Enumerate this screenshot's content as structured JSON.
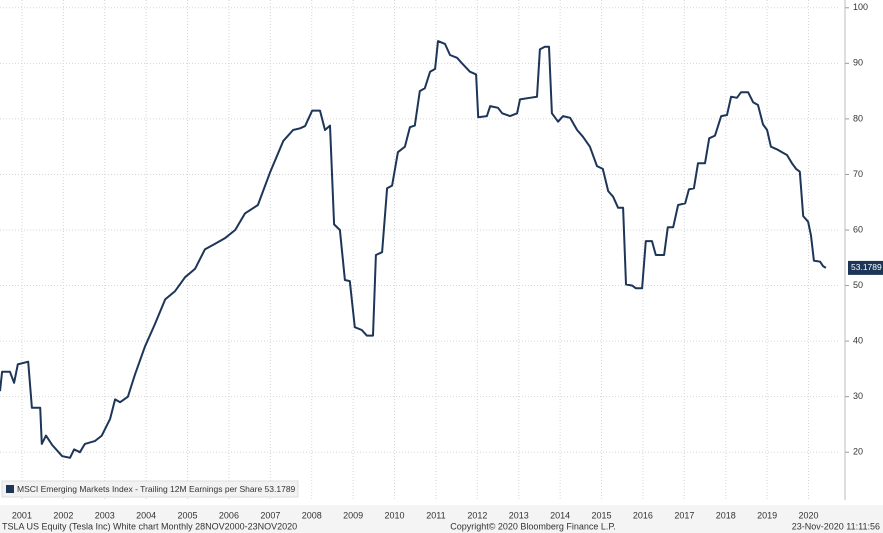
{
  "chart_data": {
    "type": "line",
    "legend_position": "bottom-left",
    "grid": true,
    "xlim": [
      2000.97,
      2021.26
    ],
    "ylim": [
      11.4,
      101.4
    ],
    "xticks": [
      {
        "value": 2001.5,
        "label": "2001"
      },
      {
        "value": 2002.5,
        "label": "2002"
      },
      {
        "value": 2003.5,
        "label": "2003"
      },
      {
        "value": 2004.5,
        "label": "2004"
      },
      {
        "value": 2005.5,
        "label": "2005"
      },
      {
        "value": 2006.5,
        "label": "2006"
      },
      {
        "value": 2007.5,
        "label": "2007"
      },
      {
        "value": 2008.5,
        "label": "2008"
      },
      {
        "value": 2009.5,
        "label": "2009"
      },
      {
        "value": 2010.5,
        "label": "2010"
      },
      {
        "value": 2011.5,
        "label": "2011"
      },
      {
        "value": 2012.5,
        "label": "2012"
      },
      {
        "value": 2013.5,
        "label": "2013"
      },
      {
        "value": 2014.5,
        "label": "2014"
      },
      {
        "value": 2015.5,
        "label": "2015"
      },
      {
        "value": 2016.5,
        "label": "2016"
      },
      {
        "value": 2017.5,
        "label": "2017"
      },
      {
        "value": 2018.5,
        "label": "2018"
      },
      {
        "value": 2019.5,
        "label": "2019"
      },
      {
        "value": 2020.5,
        "label": "2020"
      }
    ],
    "yticks": [
      20,
      30,
      40,
      50,
      60,
      70,
      80,
      90,
      100
    ],
    "x": [
      2000.97,
      2001.02,
      2001.21,
      2001.31,
      2001.4,
      2001.65,
      2001.74,
      2001.94,
      2001.98,
      2002.08,
      2002.23,
      2002.47,
      2002.66,
      2002.76,
      2002.9,
      2003.02,
      2003.26,
      2003.43,
      2003.63,
      2003.75,
      2003.87,
      2004.06,
      2004.23,
      2004.47,
      2004.71,
      2004.96,
      2005.2,
      2005.44,
      2005.68,
      2005.92,
      2006.16,
      2006.4,
      2006.65,
      2006.89,
      2007.2,
      2007.49,
      2007.81,
      2008.05,
      2008.22,
      2008.34,
      2008.51,
      2008.7,
      2008.82,
      2008.94,
      2009.04,
      2009.18,
      2009.3,
      2009.42,
      2009.54,
      2009.71,
      2009.83,
      2009.98,
      2010.05,
      2010.2,
      2010.32,
      2010.44,
      2010.58,
      2010.75,
      2010.87,
      2010.99,
      2011.11,
      2011.23,
      2011.36,
      2011.48,
      2011.55,
      2011.72,
      2011.84,
      2012.01,
      2012.13,
      2012.32,
      2012.47,
      2012.52,
      2012.73,
      2012.81,
      2013.0,
      2013.1,
      2013.29,
      2013.46,
      2013.53,
      2013.77,
      2013.94,
      2014.01,
      2014.13,
      2014.23,
      2014.3,
      2014.45,
      2014.57,
      2014.74,
      2014.91,
      2015.05,
      2015.22,
      2015.39,
      2015.53,
      2015.66,
      2015.78,
      2015.9,
      2016.02,
      2016.09,
      2016.24,
      2016.33,
      2016.48,
      2016.57,
      2016.72,
      2016.81,
      2017.01,
      2017.1,
      2017.23,
      2017.35,
      2017.52,
      2017.61,
      2017.73,
      2017.83,
      2018.0,
      2018.1,
      2018.24,
      2018.39,
      2018.53,
      2018.63,
      2018.77,
      2018.87,
      2019.04,
      2019.16,
      2019.28,
      2019.4,
      2019.5,
      2019.59,
      2019.74,
      2019.86,
      2019.98,
      2020.1,
      2020.2,
      2020.29,
      2020.37,
      2020.49,
      2020.56,
      2020.63,
      2020.78,
      2020.85,
      2020.92
    ],
    "series": [
      {
        "name": "MSCI Emerging Markets Index - Trailing 12M Earnings per Share 53.1789",
        "color": "#1d3557",
        "values": [
          31,
          34.5,
          34.5,
          32.5,
          35.8,
          36.3,
          28,
          28,
          21.5,
          23,
          21.3,
          19.3,
          19,
          20.5,
          20,
          21.5,
          22,
          23,
          26,
          29.5,
          29,
          30,
          34,
          39,
          43,
          47.5,
          49,
          51.5,
          53,
          56.5,
          57.5,
          58.5,
          60,
          63,
          64.5,
          70.3,
          76,
          78,
          78.3,
          78.7,
          81.5,
          81.5,
          78,
          78.8,
          61,
          60,
          51,
          50.8,
          42.5,
          42,
          41,
          41,
          55.5,
          56,
          67.5,
          68,
          74,
          75,
          78.5,
          78.8,
          85,
          85.5,
          88.5,
          89,
          94,
          93.5,
          91.5,
          91,
          90,
          88.5,
          88,
          80.3,
          80.5,
          82.3,
          82,
          81,
          80.5,
          81,
          83.5,
          83.8,
          84,
          92.5,
          93,
          93,
          81,
          79.5,
          80.5,
          80.2,
          78,
          76.8,
          75,
          71.5,
          71,
          67,
          66,
          64,
          64,
          50.2,
          50,
          49.5,
          49.5,
          58,
          58,
          55.5,
          55.5,
          60.5,
          60.5,
          64.5,
          64.8,
          67.3,
          67.5,
          72,
          72,
          76.5,
          77,
          80.5,
          80.7,
          84,
          83.8,
          84.8,
          84.8,
          83,
          82.5,
          79,
          78,
          75,
          74.5,
          74,
          73.5,
          72,
          71,
          70.5,
          62.5,
          61.5,
          59,
          54.5,
          54.3,
          53.5,
          53.1789
        ]
      }
    ],
    "footer": {
      "left": "TSLA US Equity (Tesla Inc) White chart  Monthly 28NOV2000-23NOV2020",
      "center": "Copyright© 2020 Bloomberg Finance L.P.",
      "right": "23-Nov-2020 11:11:56"
    }
  }
}
